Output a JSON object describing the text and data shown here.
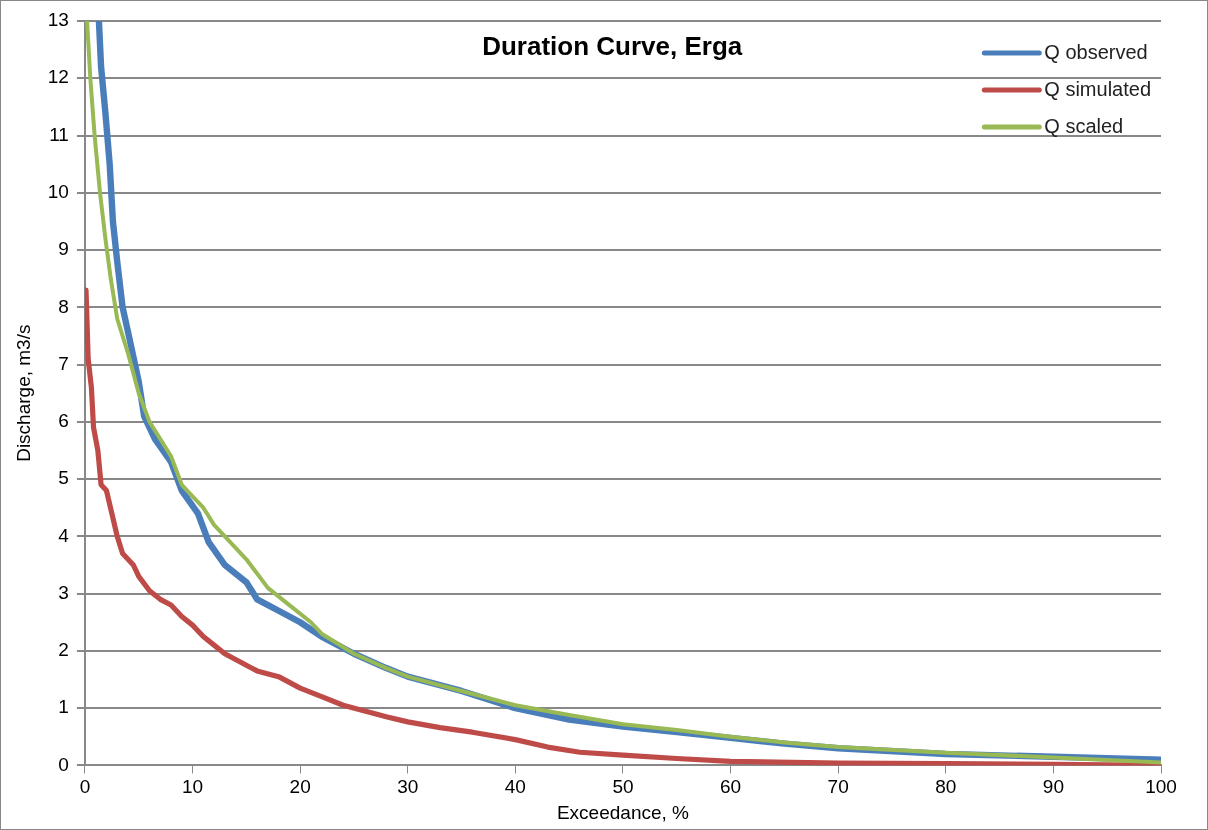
{
  "chart_data": {
    "type": "line",
    "title": "Duration Curve, Erga",
    "xlabel": "Exceedance, %",
    "ylabel": "Discharge, m3/s",
    "xlim": [
      0,
      100
    ],
    "xticks": [
      0,
      10,
      20,
      30,
      40,
      50,
      60,
      70,
      80,
      90,
      100
    ],
    "ylim": [
      0,
      13
    ],
    "yticks": [
      0,
      1,
      2,
      3,
      4,
      5,
      6,
      7,
      8,
      9,
      10,
      11,
      12,
      13
    ],
    "grid": "y",
    "legend": "top right",
    "marker": "none",
    "line_style": "solid",
    "series": [
      {
        "name": "Q observed",
        "color": "#4a7ebb",
        "x": [
          1.3,
          1.5,
          1.9,
          2.3,
          2.6,
          3,
          3.5,
          4.2,
          5,
          5.5,
          6.5,
          8,
          9,
          10.5,
          11.5,
          13,
          15,
          16,
          18,
          20,
          22,
          25,
          28,
          30,
          35,
          40,
          45,
          50,
          55,
          60,
          65,
          70,
          80,
          90,
          100
        ],
        "values": [
          13,
          12.2,
          11.4,
          10.5,
          9.5,
          8.8,
          8,
          7.4,
          6.7,
          6.1,
          5.7,
          5.3,
          4.8,
          4.4,
          3.9,
          3.5,
          3.2,
          2.9,
          2.7,
          2.5,
          2.25,
          1.95,
          1.7,
          1.55,
          1.3,
          1,
          0.8,
          0.68,
          0.58,
          0.48,
          0.38,
          0.3,
          0.2,
          0.15,
          0.1
        ]
      },
      {
        "name": "Q simulated",
        "color": "#be4b48",
        "x": [
          0.1,
          0.3,
          0.6,
          0.8,
          1.2,
          1.5,
          2,
          2.5,
          3,
          3.5,
          4.5,
          5,
          6,
          7,
          8,
          9,
          10,
          11,
          12,
          13,
          14,
          16,
          18,
          20,
          22,
          24,
          26,
          28,
          30,
          33,
          36,
          40,
          43,
          46,
          50,
          55,
          60,
          70,
          80,
          90,
          100
        ],
        "values": [
          8.3,
          7.1,
          6.6,
          5.9,
          5.5,
          4.9,
          4.8,
          4.4,
          4,
          3.7,
          3.5,
          3.3,
          3.05,
          2.9,
          2.8,
          2.6,
          2.45,
          2.25,
          2.1,
          1.95,
          1.85,
          1.65,
          1.55,
          1.35,
          1.2,
          1.05,
          0.95,
          0.85,
          0.76,
          0.66,
          0.58,
          0.45,
          0.32,
          0.23,
          0.18,
          0.12,
          0.07,
          0.04,
          0.03,
          0.02,
          0
        ]
      },
      {
        "name": "Q scaled",
        "color": "#98b954",
        "x": [
          0.2,
          0.5,
          0.9,
          1.4,
          1.9,
          2.4,
          3,
          4,
          5,
          6,
          7,
          8,
          9,
          10,
          11,
          12,
          13,
          15,
          17,
          19,
          21,
          22,
          25,
          28,
          30,
          35,
          40,
          45,
          50,
          55,
          60,
          65,
          70,
          80,
          90,
          100
        ],
        "values": [
          13,
          12,
          11,
          10,
          9.2,
          8.5,
          7.8,
          7.2,
          6.5,
          6,
          5.7,
          5.4,
          4.9,
          4.7,
          4.5,
          4.2,
          4,
          3.6,
          3.1,
          2.8,
          2.5,
          2.3,
          1.95,
          1.7,
          1.55,
          1.3,
          1.05,
          0.88,
          0.72,
          0.62,
          0.5,
          0.4,
          0.32,
          0.22,
          0.14,
          0.05
        ]
      }
    ]
  }
}
